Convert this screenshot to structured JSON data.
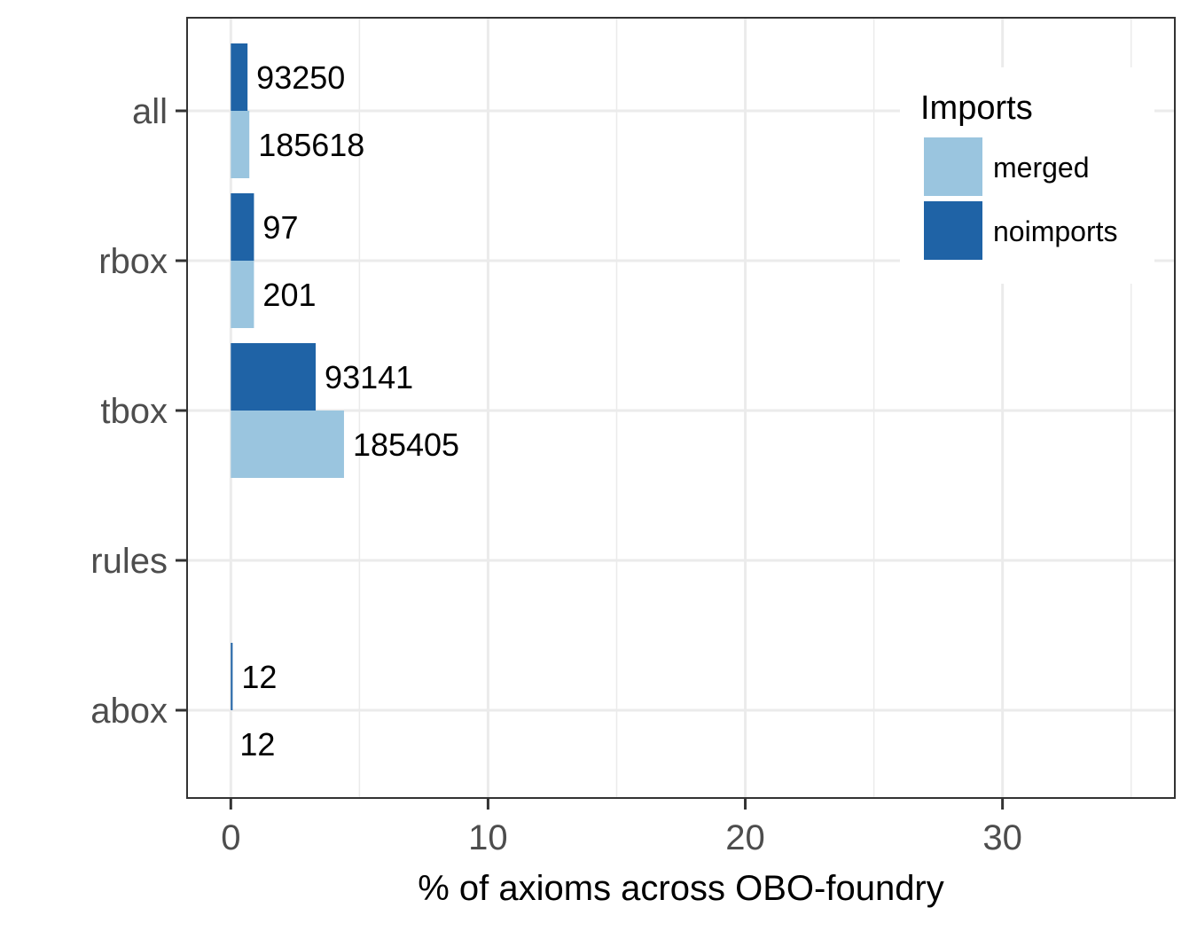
{
  "chart_data": {
    "type": "bar",
    "orientation": "horizontal",
    "categories": [
      "all",
      "rbox",
      "tbox",
      "rules",
      "abox"
    ],
    "xlabel": "% of axioms across OBO-foundry",
    "ylabel": "",
    "xlim": [
      -1.7,
      36.7
    ],
    "x_ticks": [
      0,
      10,
      20,
      30
    ],
    "grid": true,
    "legend": {
      "title": "Imports",
      "position": "top-right",
      "entries": [
        "merged",
        "noimports"
      ]
    },
    "colors": {
      "merged": "#9ac5df",
      "noimports": "#1f63a6"
    },
    "series": [
      {
        "name": "noimports",
        "values": [
          0.65,
          0.9,
          3.3,
          0,
          0.07
        ],
        "labels": [
          "93250",
          "97",
          "93141",
          "",
          "12"
        ]
      },
      {
        "name": "merged",
        "values": [
          0.72,
          0.9,
          4.4,
          0,
          0
        ],
        "labels": [
          "185618",
          "201",
          "185405",
          "",
          "12"
        ]
      }
    ]
  }
}
